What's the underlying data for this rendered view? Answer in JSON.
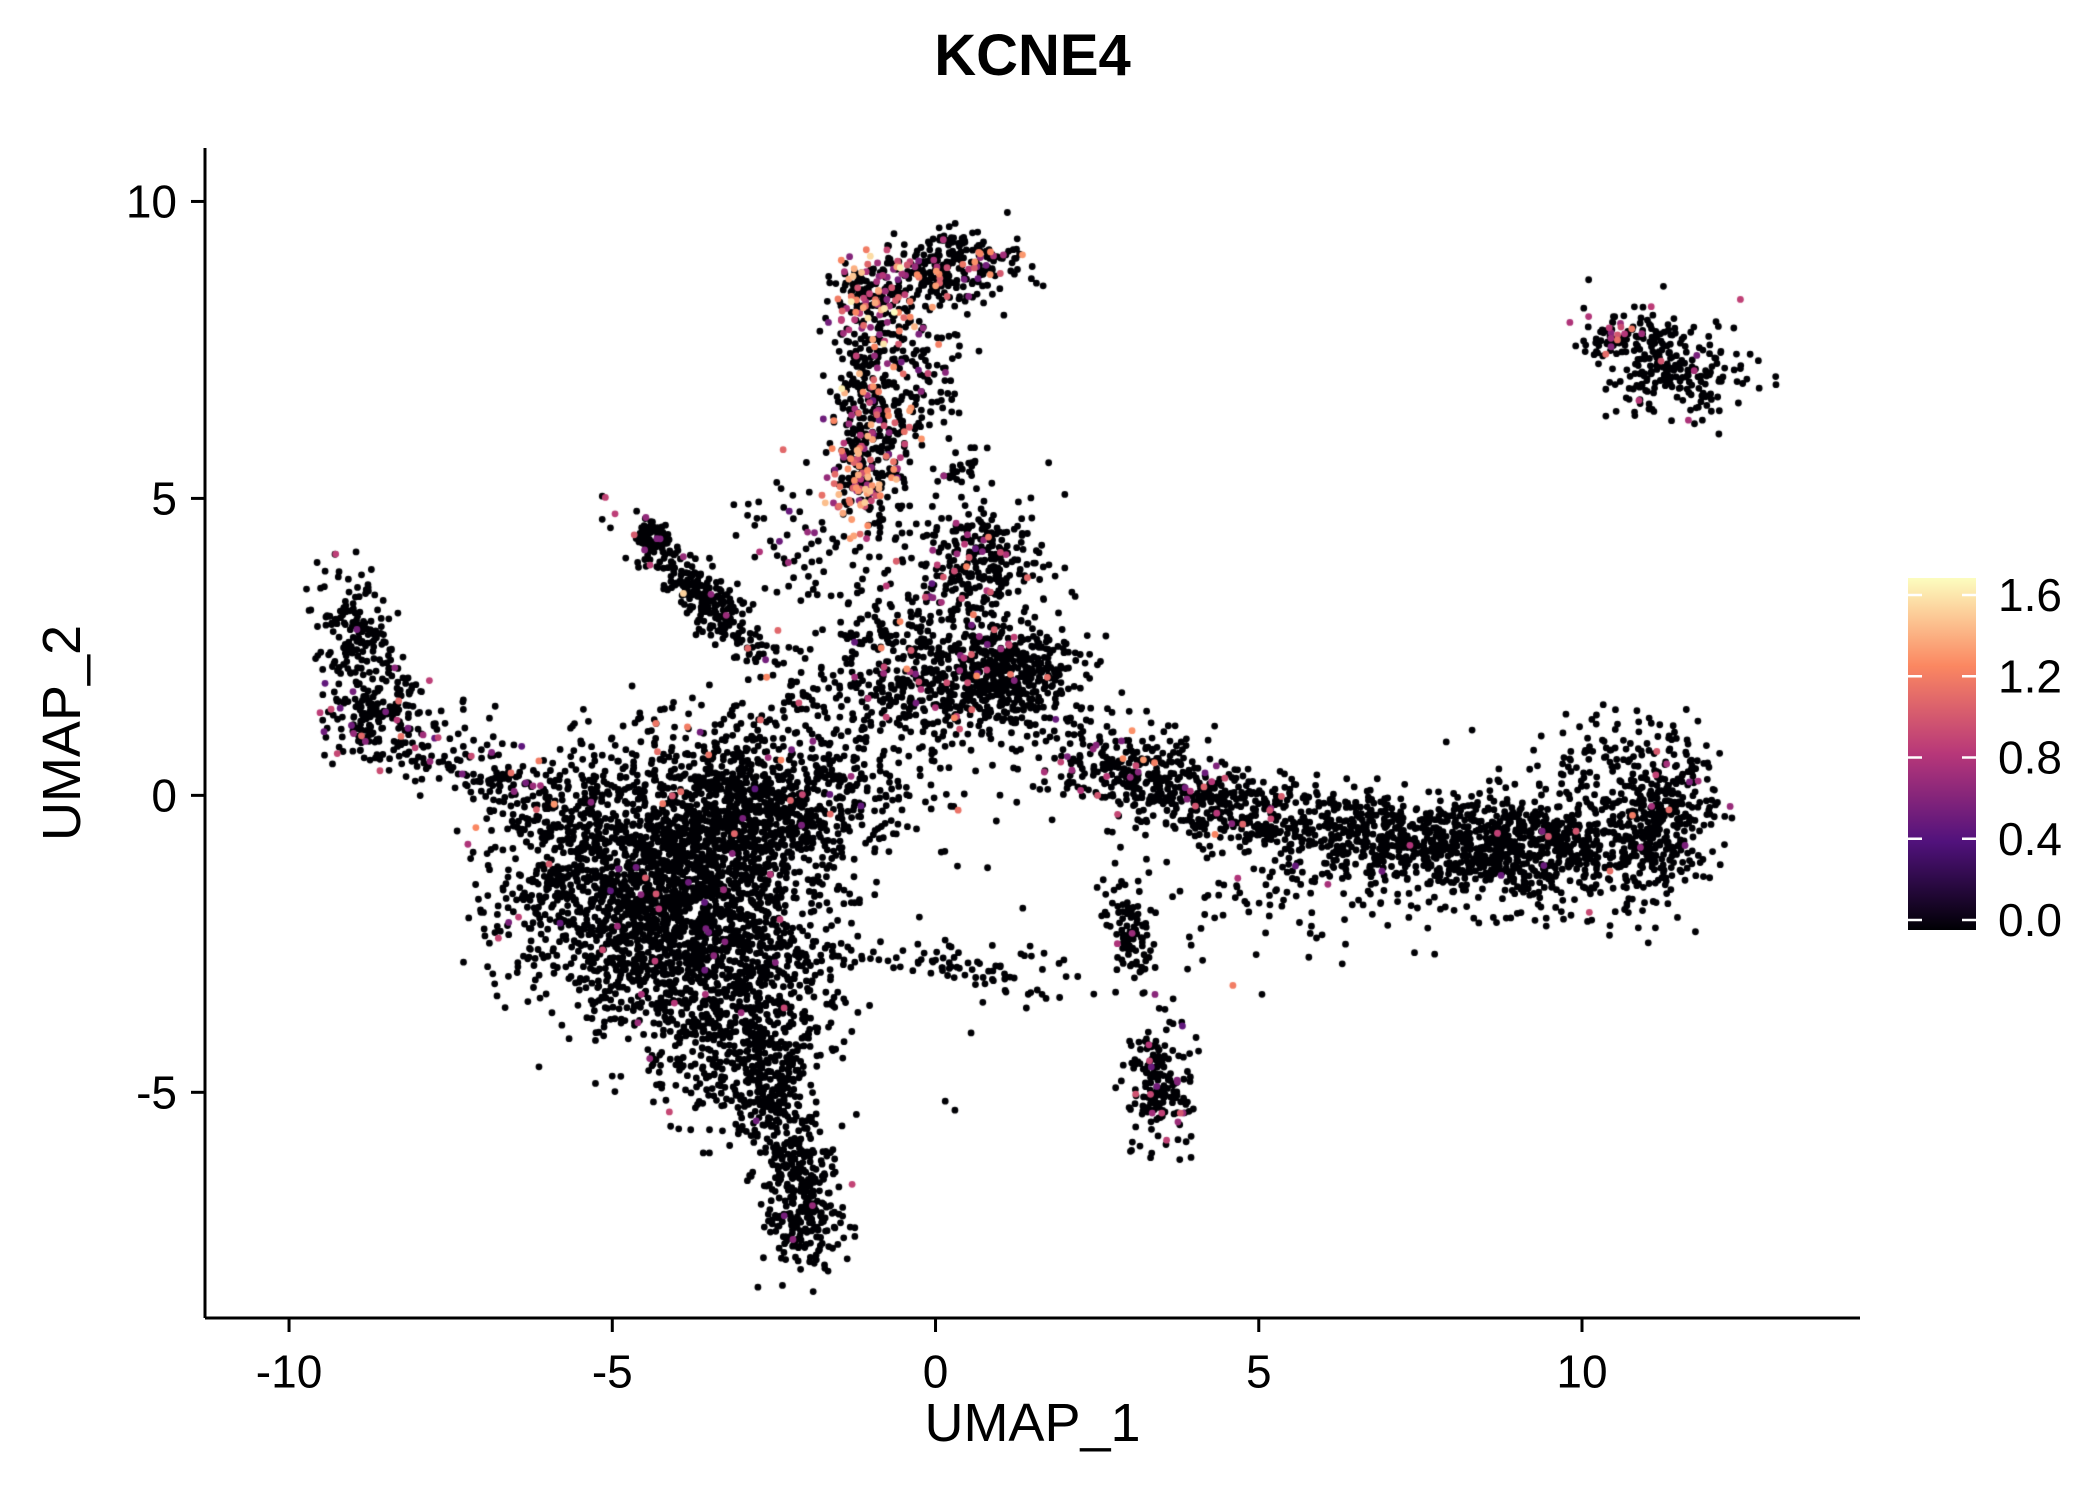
{
  "chart_data": {
    "type": "scatter",
    "title": "KCNE4",
    "xlabel": "UMAP_1",
    "ylabel": "UMAP_2",
    "xlim": [
      -11.3,
      14.3
    ],
    "ylim": [
      -8.8,
      10.9
    ],
    "x_ticks": [
      -10,
      -5,
      0,
      5,
      10
    ],
    "y_ticks": [
      -5,
      0,
      5,
      10
    ],
    "grid": false,
    "background": "#ffffff",
    "point_radius_px": 3.4,
    "base_color": "#000004",
    "seed": 42,
    "colormap": {
      "name": "magma",
      "stops": [
        "#000004",
        "#51127c",
        "#b73779",
        "#fb8761",
        "#fcfdbf"
      ],
      "positions": [
        0,
        0.25,
        0.5,
        0.75,
        1
      ]
    },
    "legend": {
      "ticks": [
        "1.6",
        "1.2",
        "0.8",
        "0.4",
        "0.0"
      ],
      "tick_values": [
        1.6,
        1.2,
        0.8,
        0.4,
        0.0
      ],
      "vmin": 0.0,
      "vmax": 1.6
    },
    "clusters": [
      {
        "name": "top-blob",
        "cx": 0.45,
        "cy": 8.95,
        "sx": 0.45,
        "sy": 0.32,
        "rot": 0,
        "n": 180,
        "colored": 0.1,
        "vmin": 0.5,
        "vmax": 1.3
      },
      {
        "name": "top-knot",
        "cx": -0.95,
        "cy": 8.35,
        "sx": 0.3,
        "sy": 0.38,
        "rot": 0,
        "n": 150,
        "colored": 0.45,
        "vmin": 0.6,
        "vmax": 1.65
      },
      {
        "name": "top-bridge",
        "cx": -0.2,
        "cy": 8.75,
        "sx": 0.4,
        "sy": 0.28,
        "rot": 0,
        "n": 90,
        "colored": 0.15,
        "vmin": 0.5,
        "vmax": 1.3
      },
      {
        "name": "arm",
        "cx": -1.0,
        "cy": 6.35,
        "sx": 0.28,
        "sy": 1.05,
        "rot": 4,
        "n": 330,
        "colored": 0.2,
        "vmin": 0.5,
        "vmax": 1.45
      },
      {
        "name": "arm-hotspot",
        "cx": -1.18,
        "cy": 5.35,
        "sx": 0.22,
        "sy": 0.38,
        "rot": 0,
        "n": 100,
        "colored": 0.5,
        "vmin": 0.6,
        "vmax": 1.4
      },
      {
        "name": "arm-upper-fan",
        "cx": -0.35,
        "cy": 7.0,
        "sx": 0.38,
        "sy": 0.6,
        "rot": 0,
        "n": 130,
        "colored": 0.12,
        "vmin": 0.5,
        "vmax": 1.3
      },
      {
        "name": "mid-blob",
        "cx": 0.65,
        "cy": 4.05,
        "sx": 0.5,
        "sy": 0.45,
        "rot": 0,
        "n": 240,
        "colored": 0.06,
        "vmin": 0.45,
        "vmax": 1.2
      },
      {
        "name": "mid-knot",
        "cx": 0.45,
        "cy": 5.45,
        "sx": 0.18,
        "sy": 0.15,
        "rot": 0,
        "n": 25,
        "colored": 0.1,
        "vmin": 0.5,
        "vmax": 1.0
      },
      {
        "name": "central-band",
        "cx": 0.2,
        "cy": 1.95,
        "sx": 1.0,
        "sy": 0.55,
        "rot": -5,
        "n": 560,
        "colored": 0.05,
        "vmin": 0.45,
        "vmax": 1.25
      },
      {
        "name": "central-band-right",
        "cx": 1.25,
        "cy": 2.1,
        "sx": 0.42,
        "sy": 0.38,
        "rot": 0,
        "n": 200,
        "colored": 0.04,
        "vmin": 0.45,
        "vmax": 1.2
      },
      {
        "name": "central-upper",
        "cx": 0.0,
        "cy": 3.1,
        "sx": 0.8,
        "sy": 0.4,
        "rot": 0,
        "n": 120,
        "colored": 0.07,
        "vmin": 0.45,
        "vmax": 1.2
      },
      {
        "name": "diag-streak",
        "cx": -3.6,
        "cy": 3.35,
        "sx": 0.85,
        "sy": 0.2,
        "rot": -48,
        "n": 280,
        "colored": 0.04,
        "vmin": 0.45,
        "vmax": 1.1
      },
      {
        "name": "diag-knot",
        "cx": -4.4,
        "cy": 4.4,
        "sx": 0.16,
        "sy": 0.16,
        "rot": 0,
        "n": 60,
        "colored": 0.05,
        "vmin": 0.45,
        "vmax": 1.0
      },
      {
        "name": "left-arc-top",
        "cx": -8.95,
        "cy": 2.75,
        "sx": 0.3,
        "sy": 0.5,
        "rot": 18,
        "n": 150,
        "colored": 0.05,
        "vmin": 0.45,
        "vmax": 1.1
      },
      {
        "name": "left-arc-bottom",
        "cx": -8.6,
        "cy": 1.35,
        "sx": 0.48,
        "sy": 0.45,
        "rot": 0,
        "n": 200,
        "colored": 0.08,
        "vmin": 0.45,
        "vmax": 1.15
      },
      {
        "name": "left-trail",
        "cx": -7.3,
        "cy": 0.5,
        "sx": 0.6,
        "sy": 0.28,
        "rot": -20,
        "n": 90,
        "colored": 0.05,
        "vmin": 0.45,
        "vmax": 1.1
      },
      {
        "name": "left-bridge",
        "cx": -6.3,
        "cy": -0.1,
        "sx": 0.5,
        "sy": 0.4,
        "rot": 0,
        "n": 60,
        "colored": 0.06,
        "vmin": 0.5,
        "vmax": 1.25
      },
      {
        "name": "main-core",
        "cx": -4.2,
        "cy": -1.7,
        "sx": 1.05,
        "sy": 1.15,
        "rot": 10,
        "n": 1750,
        "colored": 0.015,
        "vmin": 0.45,
        "vmax": 1.15
      },
      {
        "name": "main-upper",
        "cx": -3.0,
        "cy": -0.3,
        "sx": 0.9,
        "sy": 0.8,
        "rot": 0,
        "n": 700,
        "colored": 0.02,
        "vmin": 0.45,
        "vmax": 1.2
      },
      {
        "name": "main-lower",
        "cx": -3.1,
        "cy": -3.2,
        "sx": 0.8,
        "sy": 0.9,
        "rot": 0,
        "n": 520,
        "colored": 0.015,
        "vmin": 0.45,
        "vmax": 1.1
      },
      {
        "name": "main-left-fringe",
        "cx": -5.6,
        "cy": -1.2,
        "sx": 0.7,
        "sy": 1.0,
        "rot": 0,
        "n": 260,
        "colored": 0.012,
        "vmin": 0.45,
        "vmax": 1.15
      },
      {
        "name": "main-bottom-fringe",
        "cx": -2.9,
        "cy": -4.4,
        "sx": 0.55,
        "sy": 0.6,
        "rot": 0,
        "n": 200,
        "colored": 0.012,
        "vmin": 0.45,
        "vmax": 1.0
      },
      {
        "name": "tail-upper",
        "cx": -2.45,
        "cy": -5.3,
        "sx": 0.3,
        "sy": 0.6,
        "rot": 8,
        "n": 170,
        "colored": 0.012,
        "vmin": 0.45,
        "vmax": 1.0
      },
      {
        "name": "tail-lower",
        "cx": -2.1,
        "cy": -6.6,
        "sx": 0.3,
        "sy": 0.65,
        "rot": 0,
        "n": 210,
        "colored": 0.008,
        "vmin": 0.45,
        "vmax": 0.9
      },
      {
        "name": "tail-tip",
        "cx": -1.95,
        "cy": -7.35,
        "sx": 0.26,
        "sy": 0.3,
        "rot": 0,
        "n": 80,
        "colored": 0.008,
        "vmin": 0.45,
        "vmax": 0.9
      },
      {
        "name": "sparse-line",
        "cx": 0.6,
        "cy": -2.9,
        "sx": 0.9,
        "sy": 0.22,
        "rot": -8,
        "n": 85,
        "colored": 0.02,
        "vmin": 0.45,
        "vmax": 1.0
      },
      {
        "name": "hook-arc",
        "cx": 3.0,
        "cy": -2.4,
        "sx": 0.2,
        "sy": 0.6,
        "rot": 12,
        "n": 90,
        "colored": 0.02,
        "vmin": 0.45,
        "vmax": 1.0
      },
      {
        "name": "hook-blob",
        "cx": 3.45,
        "cy": -4.9,
        "sx": 0.28,
        "sy": 0.58,
        "rot": 0,
        "n": 170,
        "colored": 0.05,
        "vmin": 0.45,
        "vmax": 1.1
      },
      {
        "name": "band-left",
        "cx": 2.9,
        "cy": 0.45,
        "sx": 0.75,
        "sy": 0.4,
        "rot": -10,
        "n": 260,
        "colored": 0.05,
        "vmin": 0.5,
        "vmax": 1.3
      },
      {
        "name": "band-left2",
        "cx": 4.2,
        "cy": -0.1,
        "sx": 0.6,
        "sy": 0.3,
        "rot": -8,
        "n": 200,
        "colored": 0.05,
        "vmin": 0.5,
        "vmax": 1.2
      },
      {
        "name": "band-mid",
        "cx": 5.8,
        "cy": -0.5,
        "sx": 0.9,
        "sy": 0.35,
        "rot": -5,
        "n": 280,
        "colored": 0.012,
        "vmin": 0.45,
        "vmax": 1.1
      },
      {
        "name": "band-mid2",
        "cx": 7.6,
        "cy": -0.8,
        "sx": 0.9,
        "sy": 0.4,
        "rot": 0,
        "n": 380,
        "colored": 0.012,
        "vmin": 0.45,
        "vmax": 1.1
      },
      {
        "name": "band-right",
        "cx": 9.4,
        "cy": -0.85,
        "sx": 1.0,
        "sy": 0.5,
        "rot": 5,
        "n": 650,
        "colored": 0.012,
        "vmin": 0.45,
        "vmax": 1.15
      },
      {
        "name": "band-edge",
        "cx": 11.2,
        "cy": -0.45,
        "sx": 0.4,
        "sy": 0.75,
        "rot": -12,
        "n": 300,
        "colored": 0.02,
        "vmin": 0.45,
        "vmax": 1.15
      },
      {
        "name": "band-top-fringe",
        "cx": 10.6,
        "cy": 0.7,
        "sx": 0.7,
        "sy": 0.4,
        "rot": 0,
        "n": 80,
        "colored": 0.02,
        "vmin": 0.45,
        "vmax": 1.1
      },
      {
        "name": "band-under-fringe",
        "cx": 5.6,
        "cy": -1.7,
        "sx": 1.2,
        "sy": 0.5,
        "rot": 0,
        "n": 90,
        "colored": 0.012,
        "vmin": 0.45,
        "vmax": 1.0
      },
      {
        "name": "topright-cluster",
        "cx": 11.35,
        "cy": 7.3,
        "sx": 0.62,
        "sy": 0.45,
        "rot": -22,
        "n": 250,
        "colored": 0.03,
        "vmin": 0.5,
        "vmax": 1.2
      },
      {
        "name": "topright-tip",
        "cx": 10.35,
        "cy": 7.75,
        "sx": 0.2,
        "sy": 0.17,
        "rot": 0,
        "n": 40,
        "colored": 0.3,
        "vmin": 0.6,
        "vmax": 1.35
      },
      {
        "name": "center-scatter",
        "cx": -1.7,
        "cy": 0.4,
        "sx": 1.1,
        "sy": 0.8,
        "rot": 0,
        "n": 310,
        "colored": 0.03,
        "vmin": 0.45,
        "vmax": 1.2
      },
      {
        "name": "arm-west-scatter",
        "cx": -2.1,
        "cy": 4.2,
        "sx": 0.5,
        "sy": 0.6,
        "rot": 0,
        "n": 60,
        "colored": 0.08,
        "vmin": 0.45,
        "vmax": 1.2
      }
    ],
    "singles": [
      [
        12.45,
        8.35,
        0.85
      ],
      [
        10.9,
        7.95,
        0
      ],
      [
        2.9,
        0.62,
        1.2
      ],
      [
        3.1,
        0.5,
        0.9
      ],
      [
        4.02,
        -0.18,
        0.95
      ],
      [
        4.35,
        -0.3,
        0.8
      ],
      [
        4.6,
        -3.2,
        1.15
      ],
      [
        5.05,
        -3.35,
        0
      ],
      [
        3.5,
        -5.35,
        0.85
      ],
      [
        3.75,
        -5.5,
        0.7
      ],
      [
        3.3,
        -4.2,
        0.8
      ],
      [
        -5.9,
        -0.15,
        1.25
      ],
      [
        -6.45,
        -2.05,
        0.85
      ],
      [
        -5.15,
        -2.6,
        0.9
      ],
      [
        -4.55,
        -3.35,
        0.75
      ],
      [
        0.35,
        -0.25,
        1.1
      ],
      [
        -9.35,
        1.45,
        0.9
      ],
      [
        -8.05,
        0.8,
        0.85
      ],
      [
        -1.45,
        6.85,
        1.55
      ],
      [
        0.85,
        9.15,
        1.2
      ],
      [
        -0.6,
        8.9,
        1.3
      ],
      [
        -3.9,
        3.4,
        1.45
      ],
      [
        1.75,
        5.6,
        0
      ],
      [
        0.8,
        5.85,
        0
      ],
      [
        -6.9,
        1.3,
        0
      ],
      [
        2.5,
        -1.55,
        0
      ],
      [
        1.35,
        -1.9,
        0
      ],
      [
        0.15,
        -5.15,
        0
      ],
      [
        0.3,
        -5.3,
        0
      ],
      [
        -0.25,
        -2.05,
        0
      ],
      [
        8.3,
        1.1,
        0
      ],
      [
        7.9,
        0.9,
        0
      ],
      [
        3.3,
        -1.3,
        0
      ],
      [
        2.2,
        -3.05,
        0
      ],
      [
        0.55,
        -4.0,
        0
      ],
      [
        -7.4,
        -0.6,
        0
      ],
      [
        10.15,
        -2.1,
        0
      ]
    ]
  }
}
